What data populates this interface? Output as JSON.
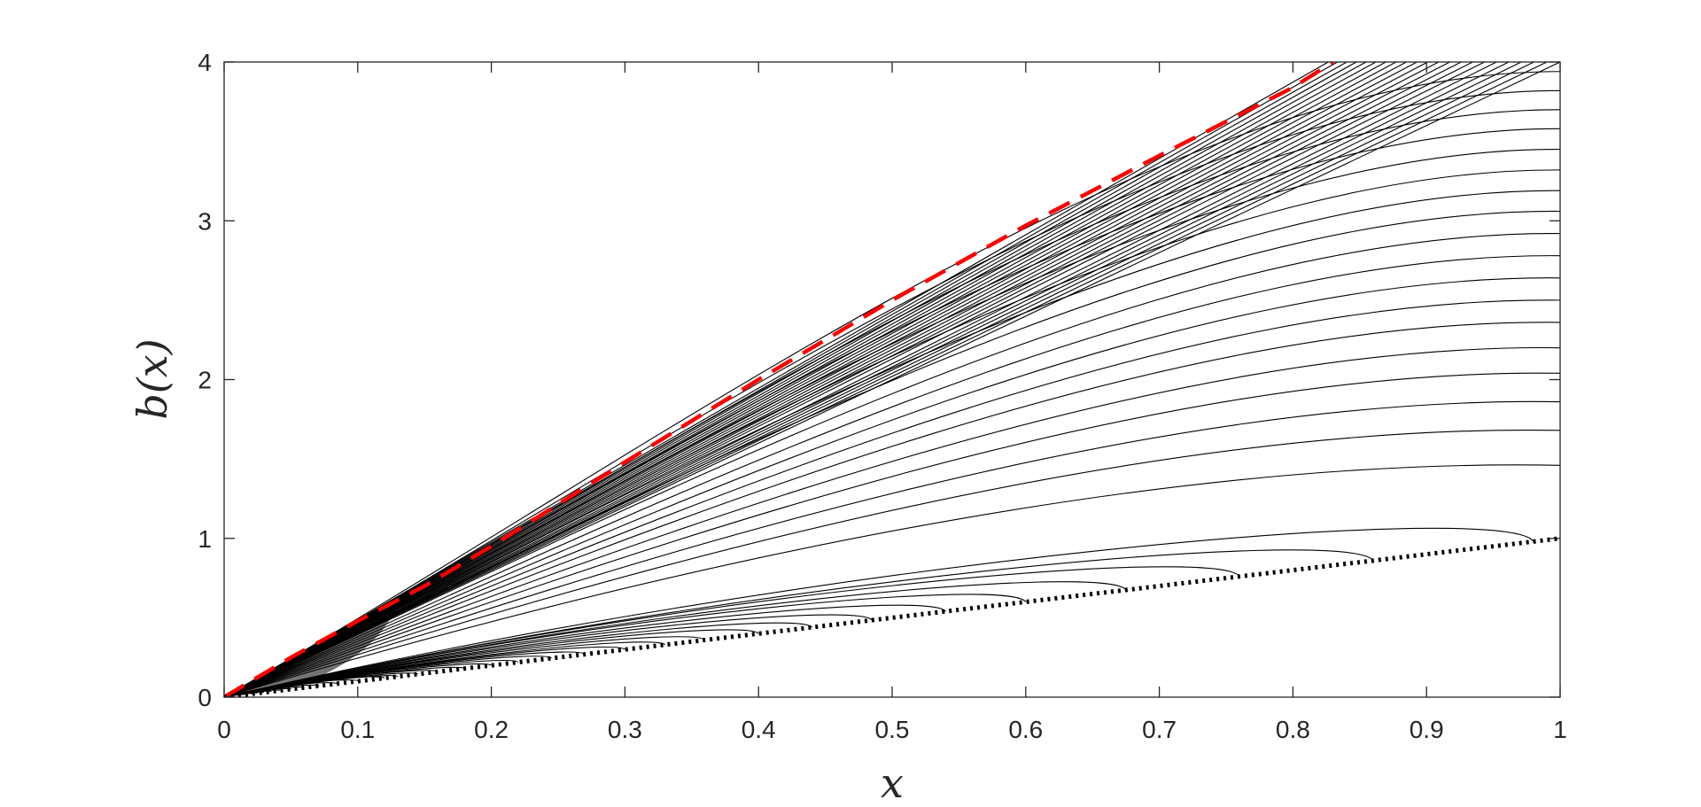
{
  "chart_data": {
    "type": "line",
    "title": "",
    "xlabel": "x",
    "ylabel": "b(x)",
    "xlim": [
      0,
      1
    ],
    "ylim": [
      0,
      4
    ],
    "x_ticks": [
      0,
      0.1,
      0.2,
      0.3,
      0.4,
      0.5,
      0.6,
      0.7,
      0.8,
      0.9,
      1
    ],
    "x_tick_labels": [
      "0",
      "0.1",
      "0.2",
      "0.3",
      "0.4",
      "0.5",
      "0.6",
      "0.7",
      "0.8",
      "0.9",
      "1"
    ],
    "y_ticks": [
      0,
      1,
      2,
      3,
      4
    ],
    "y_tick_labels": [
      "0",
      "1",
      "2",
      "3",
      "4"
    ],
    "grid": false,
    "legend": "none",
    "series": [
      {
        "style": "solid",
        "color": "#000000",
        "description_type": "family",
        "family": {
          "count": 60,
          "min_initial_slope": 1.0,
          "max_initial_slope": 4.8,
          "turning_curves": [
            {
              "x_end": 0.98,
              "y_end": 0.98,
              "y_peak": 1.22
            },
            {
              "x_end": 0.86,
              "y_end": 0.86,
              "y_peak": 1.06
            },
            {
              "x_end": 0.76,
              "y_end": 0.76,
              "y_peak": 0.94
            },
            {
              "x_end": 0.675,
              "y_end": 0.675,
              "y_peak": 0.83
            },
            {
              "x_end": 0.6,
              "y_end": 0.6,
              "y_peak": 0.74
            },
            {
              "x_end": 0.54,
              "y_end": 0.54,
              "y_peak": 0.66
            },
            {
              "x_end": 0.485,
              "y_end": 0.485,
              "y_peak": 0.59
            },
            {
              "x_end": 0.44,
              "y_end": 0.44,
              "y_peak": 0.53
            },
            {
              "x_end": 0.4,
              "y_end": 0.4,
              "y_peak": 0.48
            },
            {
              "x_end": 0.36,
              "y_end": 0.36,
              "y_peak": 0.43
            },
            {
              "x_end": 0.33,
              "y_end": 0.33,
              "y_peak": 0.39
            },
            {
              "x_end": 0.3,
              "y_end": 0.3,
              "y_peak": 0.355
            },
            {
              "x_end": 0.27,
              "y_end": 0.27,
              "y_peak": 0.32
            },
            {
              "x_end": 0.245,
              "y_end": 0.245,
              "y_peak": 0.29
            },
            {
              "x_end": 0.22,
              "y_end": 0.22,
              "y_peak": 0.26
            },
            {
              "x_end": 0.2,
              "y_end": 0.2,
              "y_peak": 0.235
            },
            {
              "x_end": 0.18,
              "y_end": 0.18,
              "y_peak": 0.21
            },
            {
              "x_end": 0.16,
              "y_end": 0.16,
              "y_peak": 0.19
            },
            {
              "x_end": 0.145,
              "y_end": 0.145,
              "y_peak": 0.17
            },
            {
              "x_end": 0.13,
              "y_end": 0.13,
              "y_peak": 0.152
            }
          ],
          "curves_reaching_x1": [
            {
              "y_at_x1": 1.46
            },
            {
              "y_at_x1": 1.68
            },
            {
              "y_at_x1": 1.86
            },
            {
              "y_at_x1": 2.04
            },
            {
              "y_at_x1": 2.2
            },
            {
              "y_at_x1": 2.36
            },
            {
              "y_at_x1": 2.5
            },
            {
              "y_at_x1": 2.64
            },
            {
              "y_at_x1": 2.78
            },
            {
              "y_at_x1": 2.92
            },
            {
              "y_at_x1": 3.06
            },
            {
              "y_at_x1": 3.19
            },
            {
              "y_at_x1": 3.32
            },
            {
              "y_at_x1": 3.45
            },
            {
              "y_at_x1": 3.58
            },
            {
              "y_at_x1": 3.7
            },
            {
              "y_at_x1": 3.82
            },
            {
              "y_at_x1": 3.94
            }
          ]
        }
      },
      {
        "style": "dashed",
        "color": "#ff0000",
        "x": [
          0,
          0.05,
          0.1,
          0.15,
          0.2,
          0.3,
          0.4,
          0.5,
          0.6,
          0.7,
          0.8,
          0.83
        ],
        "y": [
          0,
          0.25,
          0.48,
          0.7,
          0.95,
          1.48,
          2.0,
          2.5,
          2.97,
          3.41,
          3.84,
          4.0
        ]
      },
      {
        "style": "dotted",
        "color": "#000000",
        "x": [
          0,
          1
        ],
        "y": [
          0,
          1
        ]
      }
    ]
  }
}
